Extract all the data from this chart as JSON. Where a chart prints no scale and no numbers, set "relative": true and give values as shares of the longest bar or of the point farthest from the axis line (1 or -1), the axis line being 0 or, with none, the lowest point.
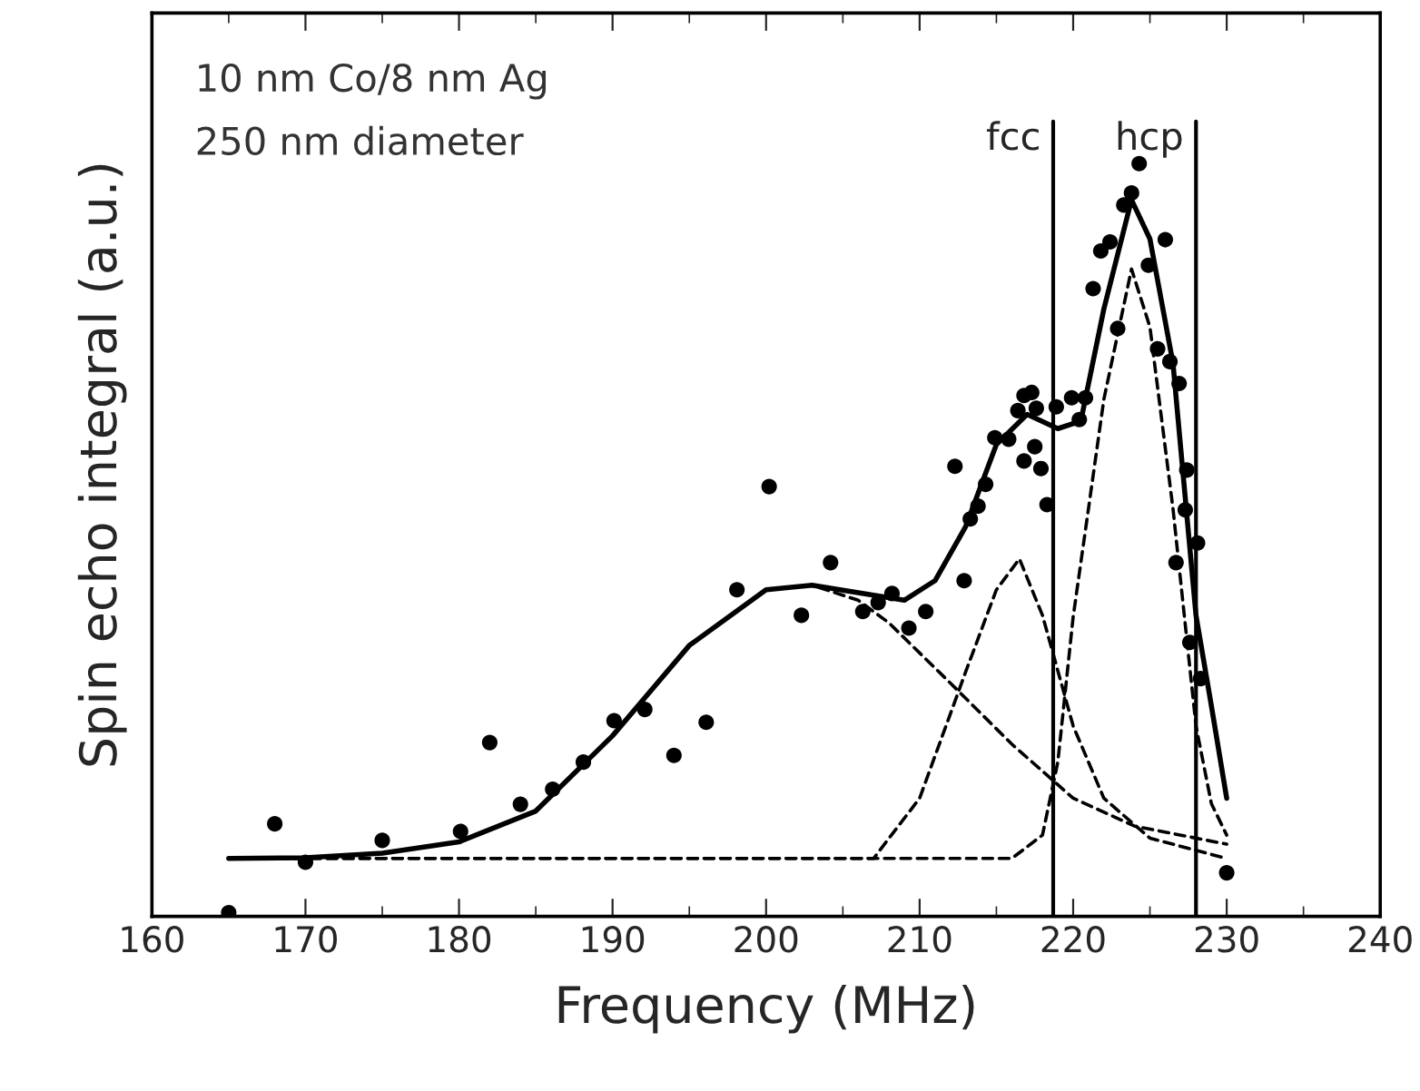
{
  "chart_data": {
    "type": "scatter",
    "xlabel": "Frequency (MHz)",
    "ylabel": "Spin echo integral (a.u.)",
    "relative": true,
    "xlim": [
      160,
      240
    ],
    "xticks": [
      160,
      170,
      180,
      190,
      200,
      210,
      220,
      230,
      240
    ],
    "grid": false,
    "legend": false,
    "annotations": [
      "10 nm Co/8 nm Ag",
      "250 nm diameter"
    ],
    "ref_lines": [
      {
        "axis": "x",
        "value": 218.7,
        "label": "fcc",
        "color": "#000000"
      },
      {
        "axis": "x",
        "value": 228.0,
        "label": "hcp",
        "color": "#000000"
      }
    ],
    "series": [
      {
        "marker": "circle",
        "color": "#000000",
        "x": [
          165,
          168.0,
          170,
          175,
          180.1,
          182.0,
          184.0,
          186.1,
          188.1,
          190.1,
          192.1,
          194.0,
          196.1,
          198.1,
          200.2,
          202.3,
          204.2,
          206.3,
          207.3,
          208.2,
          209.3,
          210.4,
          212.9,
          212.3,
          213.3,
          213.8,
          214.3,
          214.9,
          215.8,
          216.4,
          216.8,
          217.3,
          217.6,
          216.8,
          217.5,
          217.9,
          218.3,
          218.9,
          219.9,
          220.4,
          220.8,
          221.3,
          221.8,
          222.4,
          222.9,
          223.3,
          223.8,
          224.3,
          224.9,
          225.5,
          226.0,
          226.3,
          226.9,
          226.7,
          227.3,
          227.4,
          227.6,
          228.1,
          228.3,
          230
        ],
        "values": [
          0.005,
          0.123,
          0.072,
          0.101,
          0.113,
          0.231,
          0.149,
          0.169,
          0.205,
          0.26,
          0.275,
          0.214,
          0.258,
          0.434,
          0.571,
          0.4,
          0.47,
          0.405,
          0.417,
          0.429,
          0.383,
          0.405,
          0.446,
          0.598,
          0.528,
          0.545,
          0.574,
          0.636,
          0.634,
          0.672,
          0.692,
          0.696,
          0.675,
          0.605,
          0.624,
          0.595,
          0.547,
          0.677,
          0.689,
          0.66,
          0.689,
          0.834,
          0.884,
          0.896,
          0.781,
          0.945,
          0.961,
          1.0,
          0.865,
          0.754,
          0.899,
          0.737,
          0.708,
          0.47,
          0.54,
          0.593,
          0.364,
          0.496,
          0.316,
          0.058
        ]
      },
      {
        "type": "line",
        "marker": "none",
        "line_style": "solid",
        "color": "#000000",
        "x": [
          165,
          170,
          175,
          180,
          185,
          190,
          195,
          200,
          203,
          206,
          209,
          211,
          213,
          215,
          217,
          219,
          220.5,
          222,
          223.8,
          225,
          226.5,
          228,
          229,
          230
        ],
        "values": [
          0.077,
          0.078,
          0.084,
          0.099,
          0.14,
          0.24,
          0.36,
          0.434,
          0.44,
          0.43,
          0.42,
          0.446,
          0.518,
          0.627,
          0.667,
          0.648,
          0.658,
          0.807,
          0.952,
          0.9,
          0.735,
          0.4,
          0.28,
          0.157
        ]
      },
      {
        "type": "line",
        "marker": "none",
        "line_style": "dashed",
        "color": "#000000",
        "x": [
          165,
          170,
          175,
          180,
          185,
          190,
          195,
          200,
          203,
          206,
          208,
          212,
          216,
          220,
          224,
          230
        ],
        "values": [
          0.077,
          0.078,
          0.084,
          0.099,
          0.14,
          0.24,
          0.36,
          0.434,
          0.44,
          0.42,
          0.39,
          0.31,
          0.229,
          0.157,
          0.12,
          0.096
        ]
      },
      {
        "type": "line",
        "marker": "none",
        "line_style": "dashed",
        "color": "#000000",
        "x": [
          165,
          207,
          210,
          213,
          215,
          216.5,
          218,
          220,
          222,
          225,
          230
        ],
        "values": [
          0.077,
          0.077,
          0.157,
          0.325,
          0.434,
          0.475,
          0.4,
          0.253,
          0.157,
          0.104,
          0.077
        ]
      },
      {
        "type": "line",
        "marker": "none",
        "line_style": "dashed",
        "color": "#000000",
        "x": [
          165,
          216,
          218,
          219,
          220,
          221,
          222,
          223.8,
          225,
          226.5,
          228,
          229,
          230
        ],
        "values": [
          0.077,
          0.077,
          0.108,
          0.205,
          0.398,
          0.542,
          0.687,
          0.86,
          0.783,
          0.542,
          0.253,
          0.15,
          0.108
        ]
      }
    ]
  }
}
